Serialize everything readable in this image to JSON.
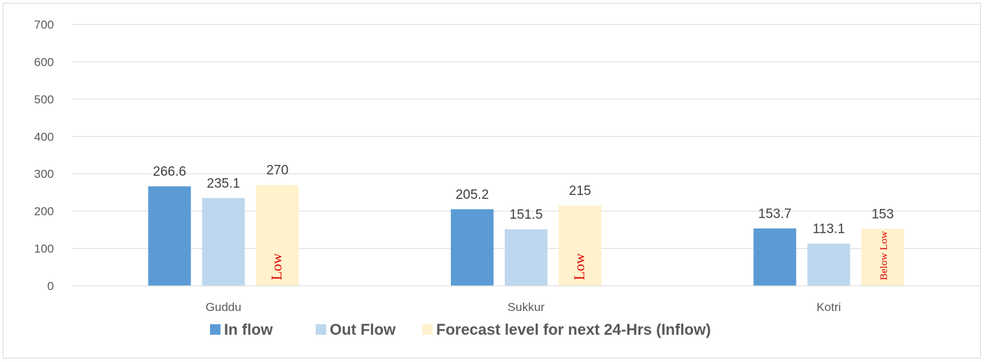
{
  "chart_data": {
    "type": "bar",
    "categories": [
      "Guddu",
      "Sukkur",
      "Kotri"
    ],
    "series": [
      {
        "name": "In flow",
        "values": [
          266.6,
          205.2,
          153.7
        ],
        "color": "#5b9bd5"
      },
      {
        "name": "Out Flow",
        "values": [
          235.1,
          151.5,
          113.1
        ],
        "color": "#bdd7ee"
      },
      {
        "name": "Forecast level for next 24-Hrs (Inflow)",
        "values": [
          270,
          215,
          153
        ],
        "color": "#fff2cc"
      }
    ],
    "value_labels": [
      [
        "266.6",
        "205.2",
        "153.7"
      ],
      [
        "235.1",
        "151.5",
        "113.1"
      ],
      [
        "270",
        "215",
        "153"
      ]
    ],
    "annotations": [
      "Low",
      "Low",
      "Below Low"
    ],
    "annotation_color": "#e00000",
    "yticks": [
      "0",
      "100",
      "200",
      "300",
      "400",
      "500",
      "600",
      "700"
    ],
    "ylim": [
      0,
      700
    ],
    "grid": true,
    "legend_position": "bottom",
    "title": "",
    "xlabel": "",
    "ylabel": ""
  }
}
